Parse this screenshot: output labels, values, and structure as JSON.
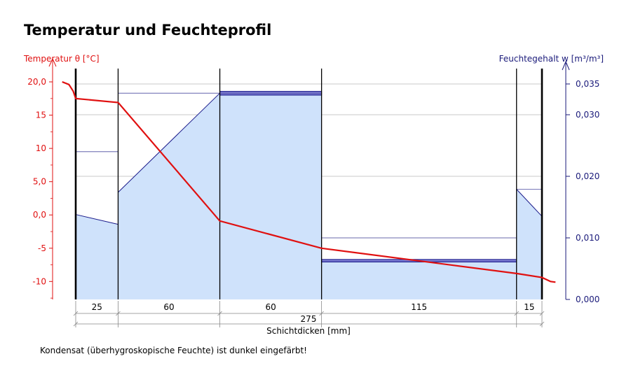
{
  "chart_data": {
    "type": "area",
    "title": "Temperatur und Feuchteprofil",
    "left_axis": {
      "label": "Temperatur θ [°C]",
      "ylim": [
        -12.7,
        22.0
      ],
      "ticks": [
        {
          "value": 20,
          "label": "20,0"
        },
        {
          "value": 15,
          "label": "15"
        },
        {
          "value": 10,
          "label": "10"
        },
        {
          "value": 5,
          "label": "5,0"
        },
        {
          "value": 0,
          "label": "0,0"
        },
        {
          "value": -5,
          "label": "-5"
        },
        {
          "value": -10,
          "label": "-10"
        }
      ],
      "color": "#e01010"
    },
    "right_axis": {
      "label": "Feuchtegehalt  w [m³/m³]",
      "ylim": [
        0.0,
        0.0375
      ],
      "ticks": [
        {
          "value": 0.035,
          "label": "0,035"
        },
        {
          "value": 0.03,
          "label": "0,030"
        },
        {
          "value": 0.02,
          "label": "0,020"
        },
        {
          "value": 0.01,
          "label": "0,010"
        },
        {
          "value": 0.0,
          "label": "0,000"
        }
      ],
      "color": "#1a1a7a"
    },
    "x_axis": {
      "label": "Schichtdicken [mm]",
      "total_label": "275",
      "xlim": [
        0,
        275
      ]
    },
    "layers": [
      {
        "label": "25",
        "thickness": 25,
        "w_start": 0.0138,
        "w_end": 0.0122,
        "w_sat": 0.024
      },
      {
        "label": "60",
        "thickness": 60,
        "w_start": 0.0174,
        "w_end": 0.0335,
        "w_sat": 0.0335
      },
      {
        "label": "60",
        "thickness": 60,
        "w_start": 0.0332,
        "w_end": 0.0332,
        "w_sat": 0.0335,
        "condensate_top": 0.0338
      },
      {
        "label": "115",
        "thickness": 115,
        "w_start": 0.0061,
        "w_end": 0.0061,
        "w_sat": 0.01,
        "condensate_top": 0.0065
      },
      {
        "label": "15",
        "thickness": 15,
        "w_start": 0.0179,
        "w_end": 0.0135,
        "w_sat": 0.0179
      }
    ],
    "temperature": [
      {
        "x": -8,
        "y": 20.0
      },
      {
        "x": -4,
        "y": 19.6
      },
      {
        "x": -1.5,
        "y": 18.6
      },
      {
        "x": 0,
        "y": 17.5
      },
      {
        "x": 25,
        "y": 16.9
      },
      {
        "x": 85,
        "y": -0.9
      },
      {
        "x": 145,
        "y": -5.0
      },
      {
        "x": 260,
        "y": -8.8
      },
      {
        "x": 275,
        "y": -9.4
      },
      {
        "x": 280,
        "y": -10.0
      },
      {
        "x": 283,
        "y": -10.1
      }
    ],
    "footnote": "Kondensat (überhygroskopische Feuchte) ist dunkel eingefärbt!"
  }
}
